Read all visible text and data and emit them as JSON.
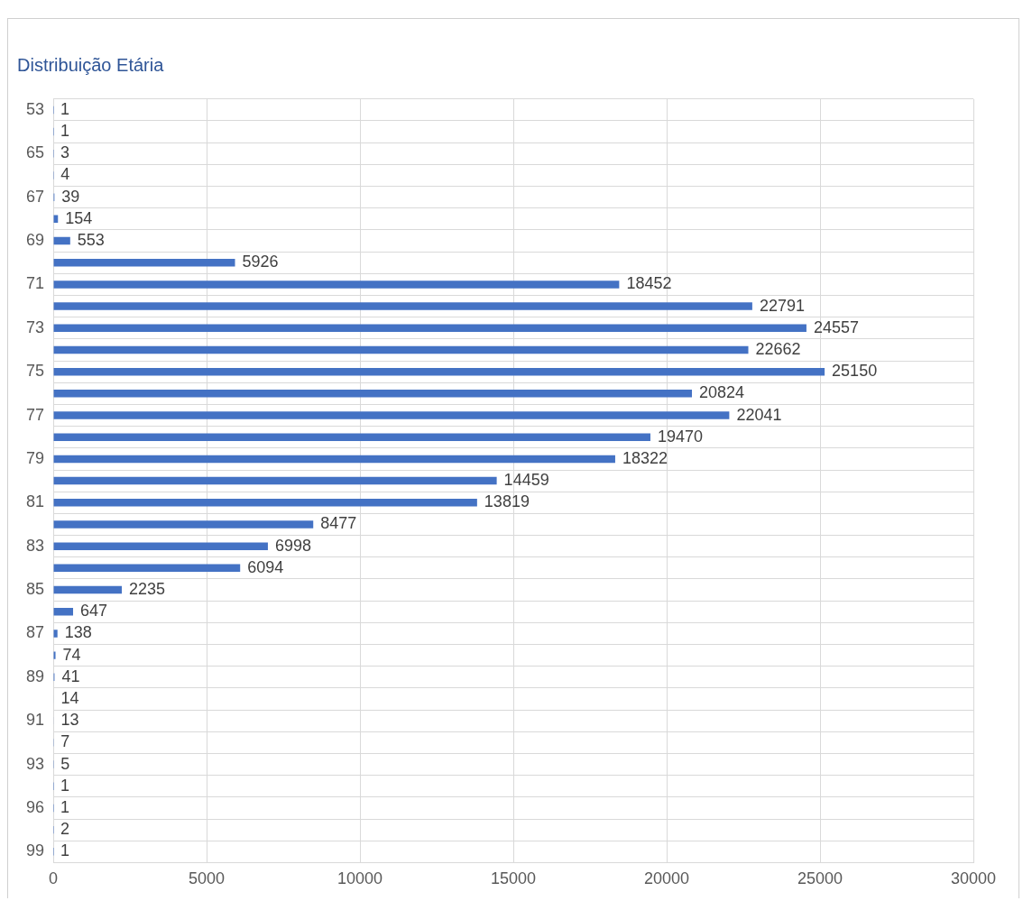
{
  "chart_data": {
    "type": "bar",
    "orientation": "horizontal",
    "title": "Distribuição Etária",
    "categories": [
      "53",
      null,
      "65",
      null,
      "67",
      null,
      "69",
      null,
      "71",
      null,
      "73",
      null,
      "75",
      null,
      "77",
      null,
      "79",
      null,
      "81",
      null,
      "83",
      null,
      "85",
      null,
      "87",
      null,
      "89",
      null,
      "91",
      null,
      "93",
      null,
      "96",
      null,
      "99"
    ],
    "values": [
      1,
      1,
      3,
      4,
      39,
      154,
      553,
      5926,
      18452,
      22791,
      24557,
      22662,
      25150,
      20824,
      22041,
      19470,
      18322,
      14459,
      13819,
      8477,
      6998,
      6094,
      2235,
      647,
      138,
      74,
      41,
      14,
      13,
      7,
      5,
      1,
      1,
      2,
      1
    ],
    "color": "#4472c4",
    "xlim": [
      0,
      30000
    ],
    "xticks": [
      0,
      5000,
      10000,
      15000,
      20000,
      25000,
      30000
    ],
    "grid": true,
    "data_labels": true,
    "legend": false
  }
}
